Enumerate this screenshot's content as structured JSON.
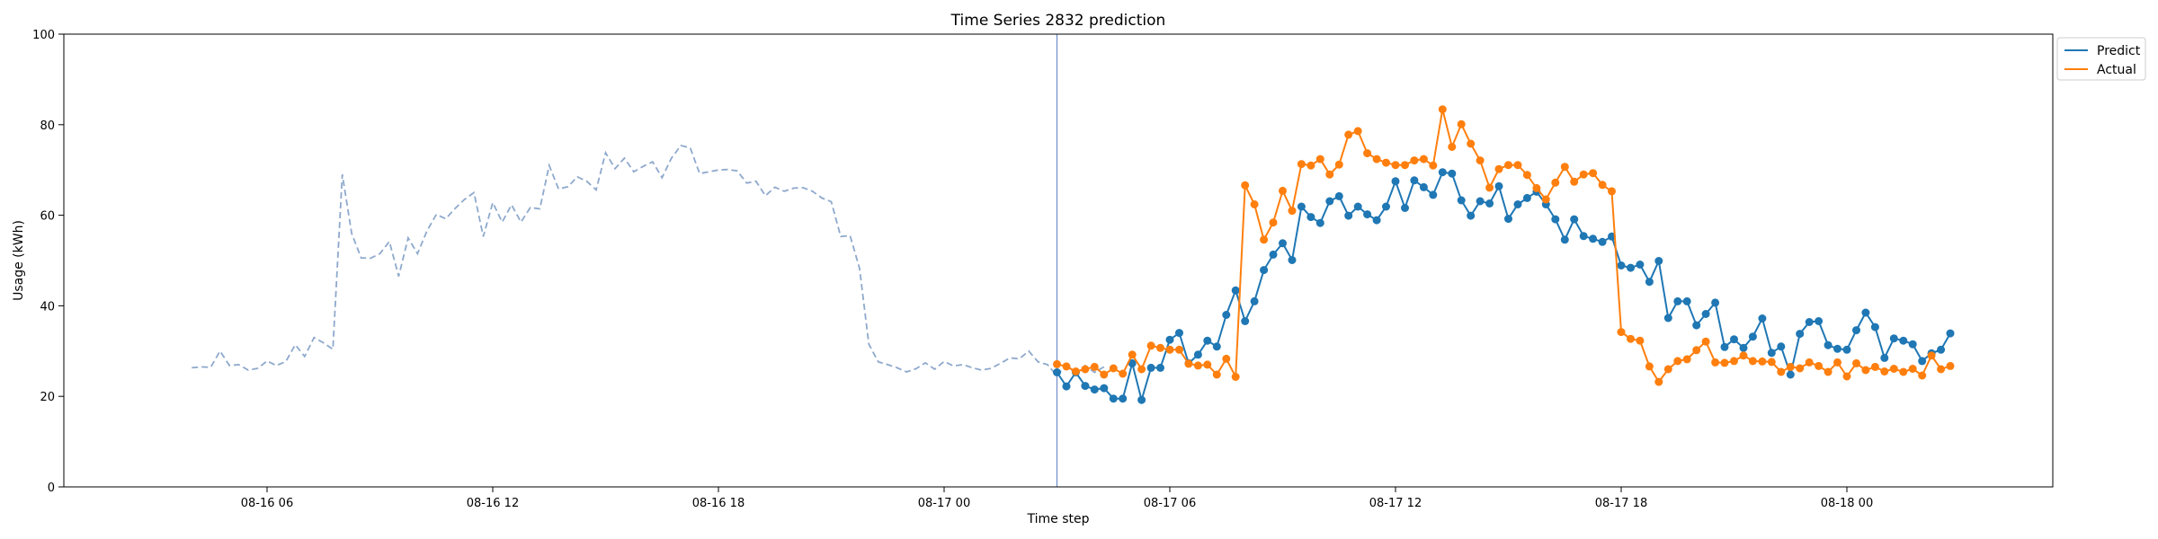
{
  "chart_data": {
    "type": "line",
    "title": "Time Series 2832 prediction",
    "xlabel": "Time step",
    "ylabel": "Usage (kWh)",
    "ylim": [
      0,
      100
    ],
    "xlim": [
      "08-16 02:15",
      "08-18 04:15"
    ],
    "x_ticks": [
      {
        "value": "08-16 06:00",
        "label": "08-16 06"
      },
      {
        "value": "08-16 12:00",
        "label": "08-16 12"
      },
      {
        "value": "08-16 18:00",
        "label": "08-16 18"
      },
      {
        "value": "08-17 00:00",
        "label": "08-17 00"
      },
      {
        "value": "08-17 06:00",
        "label": "08-17 06"
      },
      {
        "value": "08-17 12:00",
        "label": "08-17 12"
      },
      {
        "value": "08-17 18:00",
        "label": "08-17 18"
      },
      {
        "value": "08-18 00:00",
        "label": "08-18 00"
      }
    ],
    "y_ticks": [
      0,
      20,
      40,
      60,
      80,
      100
    ],
    "grid": false,
    "legend_position": "outside-top-right",
    "vertical_marker": "08-17 03:00",
    "history": {
      "start": "08-16 04:00",
      "step_minutes": 15,
      "color": "#8ea9cc",
      "style": "dashed",
      "values": [
        26.3,
        26.5,
        26.4,
        30.0,
        26.8,
        27.0,
        25.8,
        26.2,
        27.8,
        26.8,
        27.7,
        31.4,
        28.8,
        33.0,
        31.8,
        30.4,
        69.0,
        56.0,
        50.6,
        50.5,
        51.5,
        54.2,
        46.5,
        55.0,
        51.5,
        56.5,
        60.2,
        59.2,
        61.5,
        63.5,
        65.0,
        55.3,
        62.8,
        58.5,
        62.3,
        58.5,
        61.7,
        61.4,
        71.0,
        65.8,
        66.3,
        68.5,
        67.5,
        65.6,
        73.8,
        70.3,
        72.6,
        69.6,
        70.8,
        71.8,
        68.3,
        72.6,
        75.4,
        74.9,
        69.2,
        69.6,
        70.0,
        70.1,
        69.8,
        67.1,
        67.5,
        64.3,
        66.2,
        65.3,
        66.0,
        66.1,
        65.3,
        63.8,
        63.0,
        55.3,
        55.5,
        48.3,
        31.5,
        27.6,
        27.0,
        26.3,
        25.4,
        26.1,
        27.4,
        26.0,
        27.7,
        26.7,
        27.0,
        26.3,
        25.8,
        26.2,
        27.3,
        28.5,
        28.3,
        30.0,
        27.6,
        27.0,
        24.5,
        27.2,
        24.8,
        26.8,
        25.3,
        26.5
      ]
    },
    "series": [
      {
        "name": "Predict",
        "color": "#1f77b4",
        "start": "08-17 03:00",
        "step_minutes": 15,
        "values": [
          25.3,
          22.2,
          25.3,
          22.3,
          21.5,
          21.8,
          19.5,
          19.5,
          27.3,
          19.2,
          26.3,
          26.3,
          32.5,
          34.0,
          27.3,
          29.2,
          32.3,
          31.0,
          38.0,
          43.4,
          36.6,
          41.0,
          47.9,
          51.3,
          53.8,
          50.1,
          61.9,
          59.6,
          58.3,
          63.1,
          64.2,
          59.9,
          61.9,
          60.2,
          58.9,
          61.9,
          67.5,
          61.6,
          67.7,
          66.2,
          64.5,
          69.5,
          69.2,
          63.3,
          59.9,
          63.1,
          62.6,
          66.4,
          59.2,
          62.4,
          63.8,
          65.2,
          62.4,
          59.1,
          54.6,
          59.1,
          55.4,
          54.8,
          54.1,
          55.3,
          48.9,
          48.4,
          49.1,
          45.3,
          49.9,
          37.3,
          41.0,
          41.0,
          35.7,
          38.2,
          40.7,
          30.9,
          32.6,
          30.7,
          33.2,
          37.2,
          29.6,
          31.0,
          24.8,
          33.8,
          36.4,
          36.6,
          31.3,
          30.5,
          30.3,
          34.6,
          38.5,
          35.3,
          28.5,
          32.8,
          32.3,
          31.5,
          27.8,
          29.5,
          30.3,
          33.9
        ]
      },
      {
        "name": "Actual",
        "color": "#ff7f0e",
        "start": "08-17 03:00",
        "step_minutes": 15,
        "values": [
          27.1,
          26.6,
          25.5,
          26.0,
          26.5,
          24.8,
          26.2,
          25.0,
          29.2,
          26.0,
          31.2,
          30.7,
          30.3,
          30.3,
          27.2,
          26.8,
          27.0,
          24.8,
          28.3,
          24.3,
          66.6,
          62.4,
          54.6,
          58.4,
          65.4,
          61.0,
          71.3,
          71.0,
          72.4,
          69.0,
          71.2,
          77.8,
          78.6,
          73.7,
          72.4,
          71.6,
          71.1,
          71.1,
          72.1,
          72.4,
          71.0,
          83.4,
          75.1,
          80.1,
          75.8,
          72.1,
          66.1,
          70.2,
          71.1,
          71.1,
          68.9,
          66.0,
          63.5,
          67.2,
          70.7,
          67.4,
          69.0,
          69.3,
          66.7,
          65.3,
          34.2,
          32.7,
          32.3,
          26.6,
          23.2,
          26.0,
          27.8,
          28.2,
          30.2,
          32.1,
          27.5,
          27.4,
          27.8,
          29.0,
          27.8,
          27.7,
          27.6,
          25.4,
          26.5,
          26.2,
          27.5,
          26.7,
          25.4,
          27.5,
          24.4,
          27.3,
          25.8,
          26.5,
          25.5,
          26.1,
          25.4,
          26.1,
          24.6,
          29.0,
          26.0,
          26.7
        ]
      }
    ]
  }
}
